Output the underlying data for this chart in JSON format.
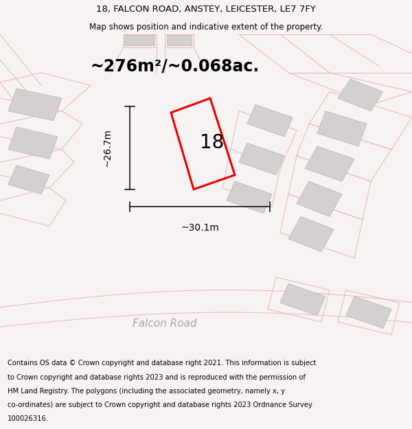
{
  "title_line1": "18, FALCON ROAD, ANSTEY, LEICESTER, LE7 7FY",
  "title_line2": "Map shows position and indicative extent of the property.",
  "area_text": "~276m²/~0.068ac.",
  "width_label": "~30.1m",
  "height_label": "~26.7m",
  "number_label": "18",
  "road_label": "Falcon Road",
  "footer_lines": [
    "Contains OS data © Crown copyright and database right 2021. This information is subject",
    "to Crown copyright and database rights 2023 and is reproduced with the permission of",
    "HM Land Registry. The polygons (including the associated geometry, namely x, y",
    "co-ordinates) are subject to Crown copyright and database rights 2023 Ordnance Survey",
    "100026316."
  ],
  "bg_color": "#f7f3f3",
  "map_bg_color": "#ffffff",
  "property_color": "#ee0000",
  "line_color": "#e8b8b8",
  "gray_fill": "#d4d0d0",
  "gray_edge": "#bcb8b8",
  "title_fontsize": 9.5,
  "subtitle_fontsize": 8.5,
  "footer_fontsize": 7.2,
  "area_fontsize": 17,
  "dim_fontsize": 10,
  "number_fontsize": 20,
  "road_fontsize": 11
}
